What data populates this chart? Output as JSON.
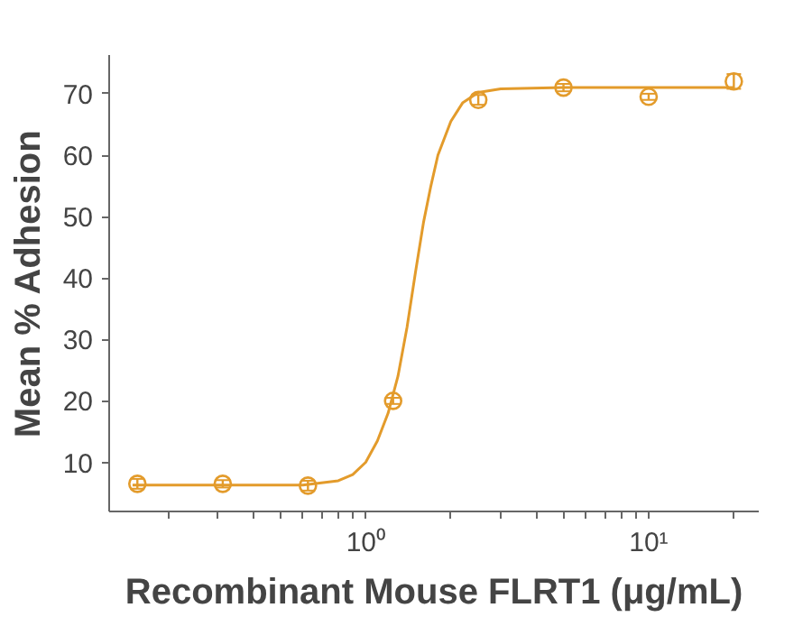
{
  "chart_data": {
    "type": "scatter",
    "xlabel": "Recombinant Mouse FLRT1 (μg/mL)",
    "ylabel": "Mean % Adhesion",
    "log": "x",
    "xlim": [
      0.124,
      24.5
    ],
    "ylim": [
      2,
      76.3
    ],
    "xticks": [
      {
        "value": 0.2,
        "label": null
      },
      {
        "value": 0.3,
        "label": null
      },
      {
        "value": 0.4,
        "label": null
      },
      {
        "value": 0.5,
        "label": null
      },
      {
        "value": 0.6,
        "label": null
      },
      {
        "value": 0.7,
        "label": null
      },
      {
        "value": 0.8,
        "label": null
      },
      {
        "value": 0.9,
        "label": null
      },
      {
        "value": 1,
        "label": "10⁰"
      },
      {
        "value": 2,
        "label": null
      },
      {
        "value": 3,
        "label": null
      },
      {
        "value": 4,
        "label": null
      },
      {
        "value": 5,
        "label": null
      },
      {
        "value": 6,
        "label": null
      },
      {
        "value": 7,
        "label": null
      },
      {
        "value": 8,
        "label": null
      },
      {
        "value": 9,
        "label": null
      },
      {
        "value": 10,
        "label": "10¹"
      },
      {
        "value": 20,
        "label": null
      }
    ],
    "yticks": [
      10,
      20,
      30,
      40,
      50,
      60,
      70
    ],
    "grid": false,
    "marker": "circle",
    "series": [
      {
        "color": "#e39b2b",
        "x": [
          0.156,
          0.3125,
          0.625,
          1.25,
          2.5,
          5,
          10,
          20
        ],
        "values": [
          6.5,
          6.5,
          6.2,
          20,
          69,
          71,
          69.5,
          72
        ],
        "errors": [
          0.8,
          0.6,
          0.8,
          0.5,
          0.8,
          0.6,
          0.5,
          1.2
        ]
      },
      {
        "type": "line",
        "marker": "none",
        "color": "#e39b2b",
        "x": [
          0.15,
          0.6,
          0.8,
          0.9,
          1.0,
          1.1,
          1.2,
          1.3,
          1.4,
          1.5,
          1.6,
          1.7,
          1.8,
          2.0,
          2.2,
          2.5,
          3,
          5,
          20
        ],
        "values": [
          6.3,
          6.3,
          7.0,
          8.0,
          10.0,
          13.5,
          18,
          24,
          32,
          41,
          49,
          55,
          60,
          65.5,
          68.5,
          70.2,
          70.8,
          71,
          71
        ]
      }
    ]
  }
}
